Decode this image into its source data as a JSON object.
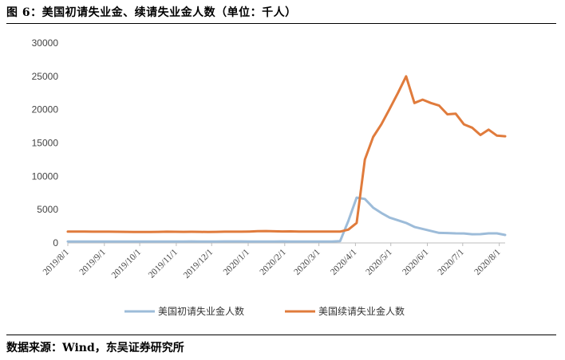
{
  "figure": {
    "title": "图 6：美国初请失业金、续请失业金人数（单位：千人）",
    "source": "数据来源：Wind，东吴证券研究所"
  },
  "chart_data": {
    "type": "line",
    "title": "",
    "xlabel": "",
    "ylabel": "",
    "ylim": [
      0,
      30000
    ],
    "yticks": [
      "0",
      "5000",
      "10000",
      "15000",
      "20000",
      "25000",
      "30000"
    ],
    "xticks": [
      "2019/8/1",
      "2019/9/1",
      "2019/10/1",
      "2019/11/1",
      "2019/12/1",
      "2020/1/1",
      "2020/2/1",
      "2020/3/1",
      "2020/4/1",
      "2020/5/1",
      "2020/6/1",
      "2020/7/1",
      "2020/8/1"
    ],
    "legend_position": "bottom",
    "grid": false,
    "x": [
      "2019-08-01",
      "2019-08-08",
      "2019-08-15",
      "2019-08-22",
      "2019-08-29",
      "2019-09-05",
      "2019-09-12",
      "2019-09-19",
      "2019-09-26",
      "2019-10-03",
      "2019-10-10",
      "2019-10-17",
      "2019-10-24",
      "2019-10-31",
      "2019-11-07",
      "2019-11-14",
      "2019-11-21",
      "2019-11-28",
      "2019-12-05",
      "2019-12-12",
      "2019-12-19",
      "2019-12-26",
      "2020-01-02",
      "2020-01-09",
      "2020-01-16",
      "2020-01-23",
      "2020-01-30",
      "2020-02-06",
      "2020-02-13",
      "2020-02-20",
      "2020-02-27",
      "2020-03-05",
      "2020-03-12",
      "2020-03-19",
      "2020-03-26",
      "2020-04-02",
      "2020-04-09",
      "2020-04-16",
      "2020-04-23",
      "2020-04-30",
      "2020-05-07",
      "2020-05-14",
      "2020-05-21",
      "2020-05-28",
      "2020-06-04",
      "2020-06-11",
      "2020-06-18",
      "2020-06-25",
      "2020-07-02",
      "2020-07-09",
      "2020-07-16",
      "2020-07-23",
      "2020-07-30",
      "2020-08-06"
    ],
    "series": [
      {
        "name": "美国初请失业金人数",
        "color": "#9dbcd9",
        "values": [
          210,
          215,
          210,
          212,
          215,
          210,
          205,
          210,
          215,
          210,
          212,
          215,
          212,
          210,
          218,
          225,
          220,
          210,
          220,
          225,
          230,
          222,
          220,
          210,
          215,
          220,
          225,
          210,
          210,
          215,
          220,
          210,
          215,
          280,
          3300,
          6800,
          6600,
          5300,
          4500,
          3800,
          3400,
          3000,
          2400,
          2100,
          1800,
          1500,
          1480,
          1430,
          1420,
          1300,
          1310,
          1430,
          1430,
          1190
        ]
      },
      {
        "name": "美国续请失业金人数",
        "color": "#e07b3c",
        "values": [
          1700,
          1710,
          1700,
          1690,
          1680,
          1690,
          1670,
          1660,
          1650,
          1640,
          1650,
          1660,
          1680,
          1670,
          1660,
          1670,
          1660,
          1640,
          1660,
          1680,
          1690,
          1690,
          1710,
          1760,
          1780,
          1740,
          1720,
          1730,
          1700,
          1710,
          1700,
          1700,
          1700,
          1700,
          2000,
          3000,
          12500,
          15900,
          17800,
          20100,
          22500,
          25000,
          21000,
          21500,
          21000,
          20600,
          19300,
          19400,
          17800,
          17300,
          16200,
          17000,
          16100,
          16000
        ]
      }
    ]
  }
}
